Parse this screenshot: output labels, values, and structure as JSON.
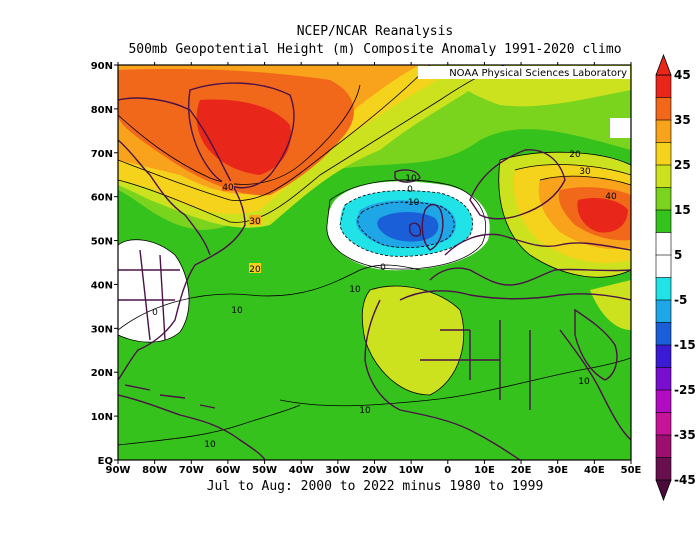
{
  "title_line1": "NCEP/NCAR Reanalysis",
  "title_line2": "500mb Geopotential Height (m) Composite Anomaly 1991-2020 climo",
  "credit": "NOAA Physical Sciences Laboratory",
  "footer": "Jul to Aug: 2000 to 2022 minus 1980 to 1999",
  "lon_ticks": [
    "90W",
    "80W",
    "70W",
    "60W",
    "50W",
    "40W",
    "30W",
    "20W",
    "10W",
    "0",
    "10E",
    "20E",
    "30E",
    "40E",
    "50E"
  ],
  "lat_ticks": [
    "EQ",
    "10N",
    "20N",
    "30N",
    "40N",
    "50N",
    "60N",
    "70N",
    "80N",
    "90N"
  ],
  "colorbar": {
    "labels": [
      "45",
      "35",
      "25",
      "15",
      "5",
      "-5",
      "-15",
      "-25",
      "-35",
      "-45"
    ],
    "colors": [
      "#e8261a",
      "#f2681b",
      "#f9a21c",
      "#f5d21c",
      "#cde21f",
      "#7ad41e",
      "#36c21c",
      "#ffffff",
      "#ffffff",
      "#21e2e6",
      "#1fa6e6",
      "#1b5fd8",
      "#3a1ad2",
      "#7a0ed0",
      "#b10cc2",
      "#c7129a",
      "#9c0f6e",
      "#6a0f4e"
    ]
  },
  "contour_labels": [
    "40",
    "30",
    "20",
    "10",
    "0",
    "-10",
    "10",
    "0",
    "10",
    "10",
    "10",
    "10",
    "0",
    "20",
    "30",
    "40",
    "10"
  ]
}
